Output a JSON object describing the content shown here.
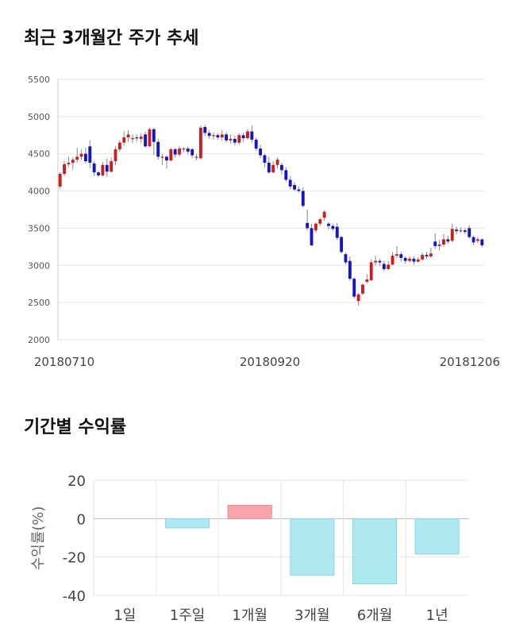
{
  "stock_chart_title": "최근 3개월간 주가 추세",
  "returns_chart_title": "기간별 수익률",
  "colors": {
    "up": "#d01c1c",
    "down": "#1414c8",
    "bar_positive": "#f7a4aa",
    "bar_negative": "#aee8f0",
    "grid": "#e6e6e6"
  },
  "chart_data": [
    {
      "type": "candlestick",
      "title": "최근 3개월간 주가 추세",
      "ylim": [
        2000,
        5500
      ],
      "yticks": [
        "5500",
        "5000",
        "4500",
        "4000",
        "3500",
        "3000",
        "2500",
        "2000"
      ],
      "x_tick_labels": [
        "20180710",
        "20180920",
        "20181206"
      ],
      "grid": true,
      "candles": [
        [
          4060,
          4230,
          4030,
          4250
        ],
        [
          4230,
          4360,
          4200,
          4400
        ],
        [
          4360,
          4380,
          4320,
          4460
        ],
        [
          4380,
          4420,
          4290,
          4450
        ],
        [
          4420,
          4460,
          4380,
          4580
        ],
        [
          4460,
          4500,
          4420,
          4560
        ],
        [
          4500,
          4400,
          4370,
          4580
        ],
        [
          4600,
          4380,
          4310,
          4680
        ],
        [
          4370,
          4250,
          4200,
          4400
        ],
        [
          4250,
          4210,
          4190,
          4270
        ],
        [
          4210,
          4350,
          4190,
          4390
        ],
        [
          4350,
          4260,
          4190,
          4440
        ],
        [
          4260,
          4400,
          4250,
          4450
        ],
        [
          4400,
          4560,
          4350,
          4600
        ],
        [
          4560,
          4650,
          4530,
          4680
        ],
        [
          4650,
          4720,
          4610,
          4800
        ],
        [
          4720,
          4760,
          4660,
          4820
        ],
        [
          4700,
          4710,
          4640,
          4760
        ],
        [
          4720,
          4710,
          4660,
          4760
        ],
        [
          4700,
          4730,
          4640,
          4780
        ],
        [
          4760,
          4600,
          4580,
          4800
        ],
        [
          4600,
          4830,
          4590,
          4850
        ],
        [
          4830,
          4660,
          4480,
          4850
        ],
        [
          4660,
          4460,
          4420,
          4700
        ],
        [
          4460,
          4460,
          4350,
          4500
        ],
        [
          4460,
          4410,
          4300,
          4480
        ],
        [
          4410,
          4560,
          4400,
          4580
        ],
        [
          4560,
          4490,
          4450,
          4580
        ],
        [
          4490,
          4570,
          4460,
          4600
        ],
        [
          4570,
          4570,
          4520,
          4590
        ],
        [
          4570,
          4530,
          4490,
          4600
        ],
        [
          4560,
          4480,
          4440,
          4580
        ],
        [
          4460,
          4460,
          4410,
          4500
        ],
        [
          4440,
          4850,
          4420,
          4880
        ],
        [
          4860,
          4780,
          4740,
          4890
        ],
        [
          4780,
          4740,
          4700,
          4820
        ],
        [
          4740,
          4750,
          4690,
          4790
        ],
        [
          4750,
          4720,
          4690,
          4780
        ],
        [
          4720,
          4760,
          4680,
          4820
        ],
        [
          4760,
          4680,
          4650,
          4790
        ],
        [
          4680,
          4700,
          4640,
          4760
        ],
        [
          4700,
          4650,
          4610,
          4740
        ],
        [
          4650,
          4750,
          4620,
          4780
        ],
        [
          4750,
          4710,
          4660,
          4780
        ],
        [
          4710,
          4800,
          4690,
          4830
        ],
        [
          4800,
          4690,
          4650,
          4880
        ],
        [
          4690,
          4570,
          4540,
          4720
        ],
        [
          4570,
          4480,
          4440,
          4620
        ],
        [
          4480,
          4380,
          4320,
          4500
        ],
        [
          4380,
          4250,
          4230,
          4460
        ],
        [
          4250,
          4350,
          4240,
          4400
        ],
        [
          4350,
          4420,
          4300,
          4450
        ],
        [
          4350,
          4280,
          4220,
          4380
        ],
        [
          4280,
          4150,
          4120,
          4320
        ],
        [
          4150,
          4060,
          4020,
          4200
        ],
        [
          4080,
          4020,
          4000,
          4120
        ],
        [
          4020,
          4000,
          3980,
          4060
        ],
        [
          4000,
          3800,
          3780,
          4050
        ],
        [
          3570,
          3500,
          3470,
          3750
        ],
        [
          3500,
          3270,
          3260,
          3560
        ],
        [
          3470,
          3560,
          3440,
          3580
        ],
        [
          3560,
          3620,
          3530,
          3640
        ],
        [
          3640,
          3720,
          3600,
          3740
        ],
        [
          3560,
          3530,
          3480,
          3580
        ],
        [
          3530,
          3490,
          3460,
          3560
        ],
        [
          3520,
          3370,
          3340,
          3570
        ],
        [
          3380,
          3180,
          3160,
          3400
        ],
        [
          3150,
          3040,
          3010,
          3170
        ],
        [
          3060,
          2820,
          2790,
          3120
        ],
        [
          2820,
          2580,
          2550,
          2840
        ],
        [
          2520,
          2610,
          2460,
          2630
        ],
        [
          2620,
          2740,
          2600,
          2760
        ],
        [
          2780,
          2810,
          2760,
          2880
        ],
        [
          2800,
          3040,
          2790,
          3080
        ],
        [
          3040,
          3060,
          3000,
          3130
        ],
        [
          3060,
          3040,
          2990,
          3090
        ],
        [
          3020,
          2950,
          2920,
          3060
        ],
        [
          2950,
          3010,
          2940,
          3060
        ],
        [
          3010,
          3130,
          3000,
          3180
        ],
        [
          3130,
          3150,
          3100,
          3260
        ],
        [
          3150,
          3100,
          3050,
          3180
        ],
        [
          3100,
          3060,
          3020,
          3120
        ],
        [
          3060,
          3090,
          3040,
          3120
        ],
        [
          3090,
          3050,
          3010,
          3120
        ],
        [
          3050,
          3080,
          3040,
          3110
        ],
        [
          3080,
          3140,
          3060,
          3170
        ],
        [
          3140,
          3120,
          3090,
          3180
        ],
        [
          3120,
          3160,
          3100,
          3240
        ],
        [
          3320,
          3260,
          3220,
          3430
        ],
        [
          3260,
          3280,
          3200,
          3340
        ],
        [
          3280,
          3350,
          3250,
          3420
        ],
        [
          3350,
          3320,
          3290,
          3400
        ],
        [
          3330,
          3490,
          3310,
          3560
        ],
        [
          3480,
          3460,
          3420,
          3520
        ],
        [
          3460,
          3470,
          3440,
          3510
        ],
        [
          3470,
          3450,
          3420,
          3500
        ],
        [
          3500,
          3380,
          3360,
          3540
        ],
        [
          3380,
          3310,
          3270,
          3400
        ],
        [
          3330,
          3350,
          3300,
          3380
        ],
        [
          3350,
          3270,
          3240,
          3360
        ]
      ]
    },
    {
      "type": "bar",
      "title": "기간별 수익률",
      "ylabel": "수익률(%)",
      "categories": [
        "1일",
        "1주일",
        "1개월",
        "3개월",
        "6개월",
        "1년"
      ],
      "values": [
        0,
        -4.8,
        7.0,
        -29.5,
        -34.0,
        -18.5
      ],
      "ylim": [
        -40,
        20
      ],
      "yticks": [
        "20",
        "0",
        "-20",
        "-40"
      ],
      "grid": true
    }
  ]
}
